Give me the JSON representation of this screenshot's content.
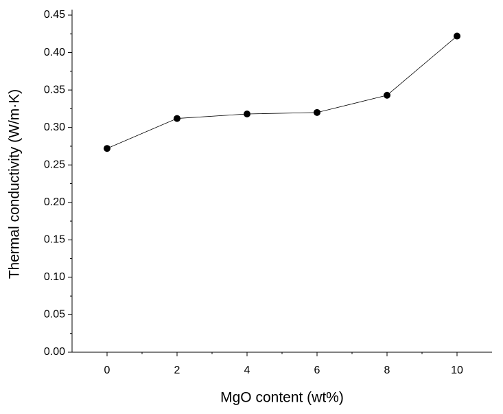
{
  "chart_data": {
    "type": "line",
    "x_label": "MgO content (wt%)",
    "y_label": "Thermal conductivity (W/m·K)",
    "x": [
      0,
      2,
      4,
      6,
      8,
      10
    ],
    "series": [
      {
        "color": "#000000",
        "values": [
          0.272,
          0.312,
          0.318,
          0.32,
          0.343,
          0.422
        ]
      }
    ],
    "xlim": [
      -1,
      11
    ],
    "xticks": [
      0,
      2,
      4,
      6,
      8,
      10
    ],
    "ylim": [
      0,
      0.45
    ],
    "yticks": [
      {
        "value": 0,
        "label": "0.00"
      },
      {
        "value": 0.05,
        "label": "0.05"
      },
      {
        "value": 0.1,
        "label": "0.10"
      },
      {
        "value": 0.15,
        "label": "0.15"
      },
      {
        "value": 0.2,
        "label": "0.20"
      },
      {
        "value": 0.25,
        "label": "0.25"
      },
      {
        "value": 0.3,
        "label": "0.30"
      },
      {
        "value": 0.35,
        "label": "0.35"
      },
      {
        "value": 0.4,
        "label": "0.40"
      },
      {
        "value": 0.45,
        "label": "0.45"
      }
    ]
  }
}
